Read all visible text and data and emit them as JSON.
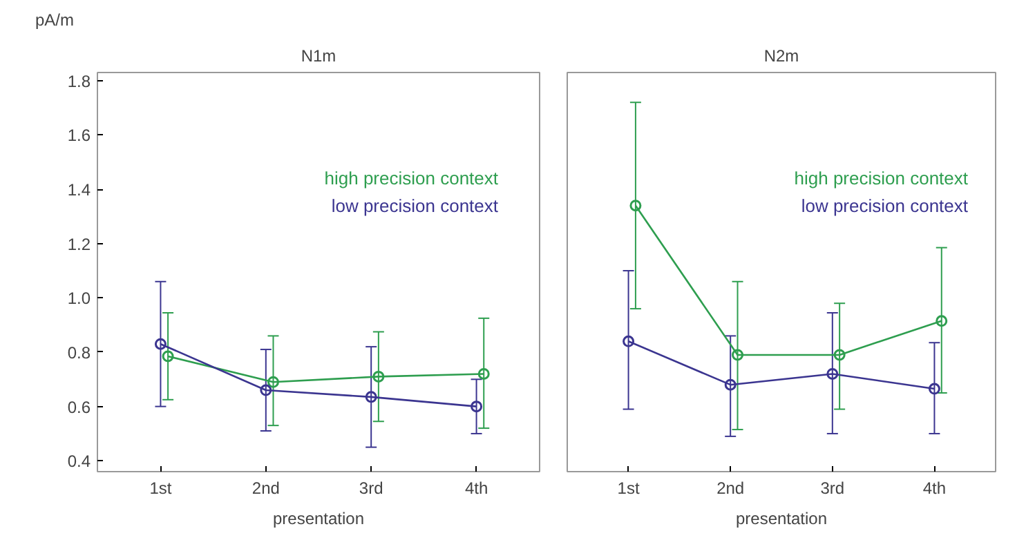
{
  "chart_data": [
    {
      "type": "line",
      "title": "N1m",
      "ylabel": "pA/m",
      "xlabel": "presentation",
      "categories": [
        "1st",
        "2nd",
        "3rd",
        "4th"
      ],
      "ylim": [
        0.36,
        1.83
      ],
      "yticks": [
        {
          "value": 0.4,
          "label": "0.4"
        },
        {
          "value": 0.6,
          "label": "0.6"
        },
        {
          "value": 0.8,
          "label": "0.8"
        },
        {
          "value": 1.0,
          "label": "1.0"
        },
        {
          "value": 1.2,
          "label": "1.2"
        },
        {
          "value": 1.4,
          "label": "1.4"
        },
        {
          "value": 1.6,
          "label": "1.6"
        },
        {
          "value": 1.8,
          "label": "1.8"
        }
      ],
      "marker": "circle",
      "grid": false,
      "legend": "right",
      "series": [
        {
          "name": "high precision context",
          "color": "#2e9e4f",
          "values": [
            0.785,
            0.69,
            0.71,
            0.72
          ],
          "errors": [
            [
              0.625,
              0.945
            ],
            [
              0.53,
              0.86
            ],
            [
              0.545,
              0.875
            ],
            [
              0.52,
              0.925
            ]
          ]
        },
        {
          "name": "low precision context",
          "color": "#3b3590",
          "values": [
            0.83,
            0.66,
            0.635,
            0.6
          ],
          "errors": [
            [
              0.6,
              1.06
            ],
            [
              0.51,
              0.81
            ],
            [
              0.45,
              0.82
            ],
            [
              0.5,
              0.7
            ]
          ]
        }
      ]
    },
    {
      "type": "line",
      "title": "N2m",
      "xlabel": "presentation",
      "categories": [
        "1st",
        "2nd",
        "3rd",
        "4th"
      ],
      "ylim": [
        0.36,
        1.83
      ],
      "tick_labels": "x",
      "marker": "circle",
      "grid": false,
      "legend": "right",
      "series": [
        {
          "name": "high precision context",
          "color": "#2e9e4f",
          "values": [
            1.34,
            0.79,
            0.79,
            0.915
          ],
          "errors": [
            [
              0.96,
              1.72
            ],
            [
              0.515,
              1.06
            ],
            [
              0.59,
              0.98
            ],
            [
              0.65,
              1.185
            ]
          ]
        },
        {
          "name": "low precision context",
          "color": "#3b3590",
          "values": [
            0.84,
            0.68,
            0.72,
            0.665
          ],
          "errors": [
            [
              0.59,
              1.1
            ],
            [
              0.49,
              0.86
            ],
            [
              0.5,
              0.945
            ],
            [
              0.5,
              0.835
            ]
          ]
        }
      ]
    }
  ]
}
